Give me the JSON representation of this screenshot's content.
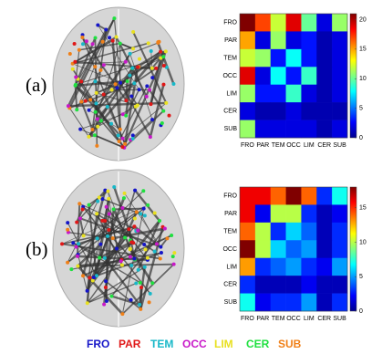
{
  "chart_data": [
    {
      "type": "heatmap",
      "x": [
        "FRO",
        "PAR",
        "TEM",
        "OCC",
        "LIM",
        "CER",
        "SUB"
      ],
      "y": [
        "FRO",
        "PAR",
        "TEM",
        "OCC",
        "LIM",
        "CER",
        "SUB"
      ],
      "values": [
        [
          21,
          17,
          12,
          19,
          10,
          2,
          11
        ],
        [
          15,
          2,
          11,
          2,
          3,
          1,
          2
        ],
        [
          12,
          11,
          3,
          8,
          3,
          1,
          2
        ],
        [
          19,
          2,
          8,
          3,
          9,
          1,
          2
        ],
        [
          11,
          3,
          3,
          9,
          2,
          1,
          2
        ],
        [
          2,
          1,
          1,
          2,
          1,
          1,
          1
        ],
        [
          11,
          2,
          2,
          2,
          2,
          1,
          2
        ]
      ],
      "zlim": [
        0,
        21
      ],
      "zticks": [
        0,
        5,
        10,
        15,
        20
      ],
      "colormap": "jet"
    },
    {
      "type": "heatmap",
      "x": [
        "FRO",
        "PAR",
        "TEM",
        "OCC",
        "LIM",
        "CER",
        "SUB"
      ],
      "y": [
        "FRO",
        "PAR",
        "TEM",
        "OCC",
        "LIM",
        "CER",
        "SUB"
      ],
      "values": [
        [
          16,
          16,
          14,
          18,
          14,
          3,
          7
        ],
        [
          16,
          2,
          10,
          10,
          3,
          1,
          2
        ],
        [
          14,
          10,
          3,
          6,
          4,
          1,
          3
        ],
        [
          18,
          10,
          6,
          4,
          5,
          1,
          3
        ],
        [
          13,
          3,
          4,
          5,
          3,
          2,
          5
        ],
        [
          3,
          1,
          1,
          1,
          2,
          1,
          1
        ],
        [
          7,
          2,
          3,
          3,
          5,
          1,
          3
        ]
      ],
      "zlim": [
        0,
        18
      ],
      "zticks": [
        0,
        5,
        10,
        15
      ],
      "colormap": "jet"
    }
  ],
  "panels": [
    "(a)",
    "(b)"
  ],
  "legend": [
    {
      "label": "FRO",
      "color": "#1515c8"
    },
    {
      "label": "PAR",
      "color": "#e01818"
    },
    {
      "label": "TEM",
      "color": "#18b8c8"
    },
    {
      "label": "OCC",
      "color": "#c818c8"
    },
    {
      "label": "LIM",
      "color": "#e8e020"
    },
    {
      "label": "CER",
      "color": "#20e040"
    },
    {
      "label": "SUB",
      "color": "#f08018"
    }
  ]
}
